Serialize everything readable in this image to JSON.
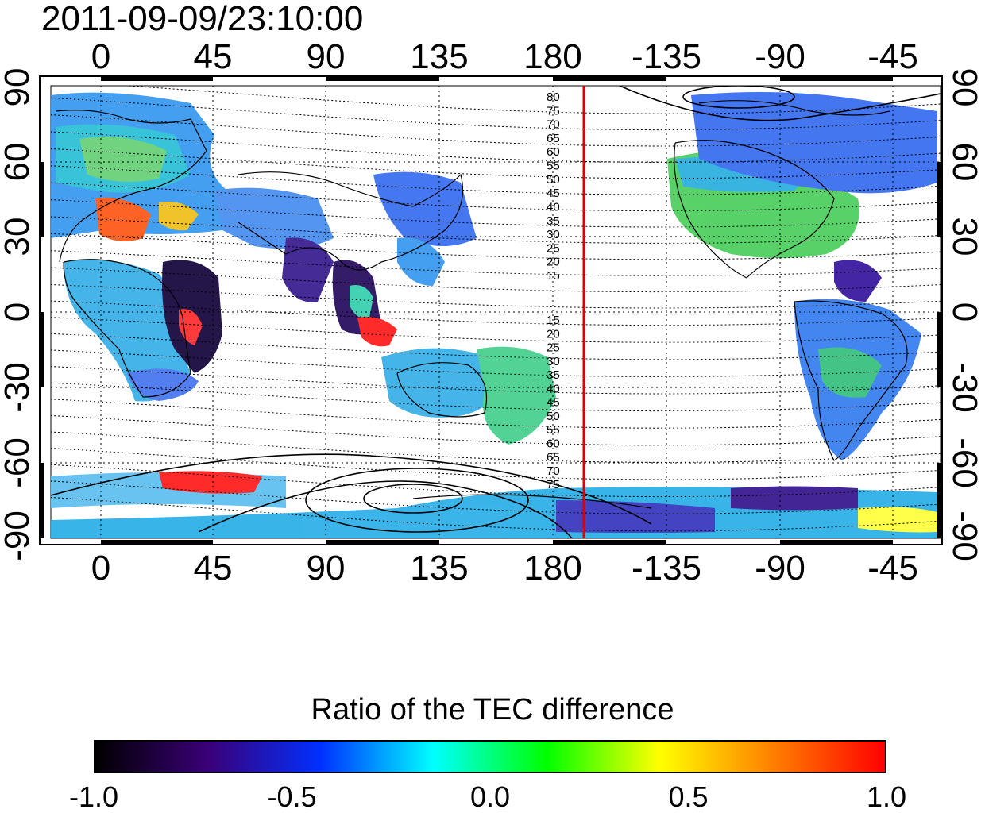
{
  "timestamp": "2011-09-09/23:10:00",
  "map": {
    "top_lon_labels": [
      "0",
      "45",
      "90",
      "135",
      "180",
      "-135",
      "-90",
      "-45"
    ],
    "bottom_lon_labels": [
      "0",
      "45",
      "90",
      "135",
      "180",
      "-135",
      "-90",
      "-45"
    ],
    "left_lat_labels": [
      "90",
      "60",
      "30",
      "0",
      "-30",
      "-60",
      "-90"
    ],
    "right_lat_labels": [
      "90",
      "60",
      "30",
      "0",
      "-30",
      "-60",
      "-90"
    ],
    "north_contour_labels": [
      "80",
      "75",
      "70",
      "65",
      "60",
      "55",
      "50",
      "45",
      "40",
      "35",
      "30",
      "25",
      "20",
      "15"
    ],
    "south_contour_labels": [
      "15",
      "20",
      "25",
      "30",
      "35",
      "40",
      "45",
      "50",
      "55",
      "60",
      "65",
      "70",
      "75"
    ],
    "marker_line_color": "#dd0000"
  },
  "colorbar": {
    "title": "Ratio of the TEC difference",
    "tick_labels": [
      "-1.0",
      "-0.5",
      "0.0",
      "0.5",
      "1.0"
    ],
    "colors": [
      "#000000",
      "#3a0078",
      "#0030ff",
      "#00ffff",
      "#00ff00",
      "#ffff00",
      "#ff8000",
      "#ff0000"
    ]
  }
}
